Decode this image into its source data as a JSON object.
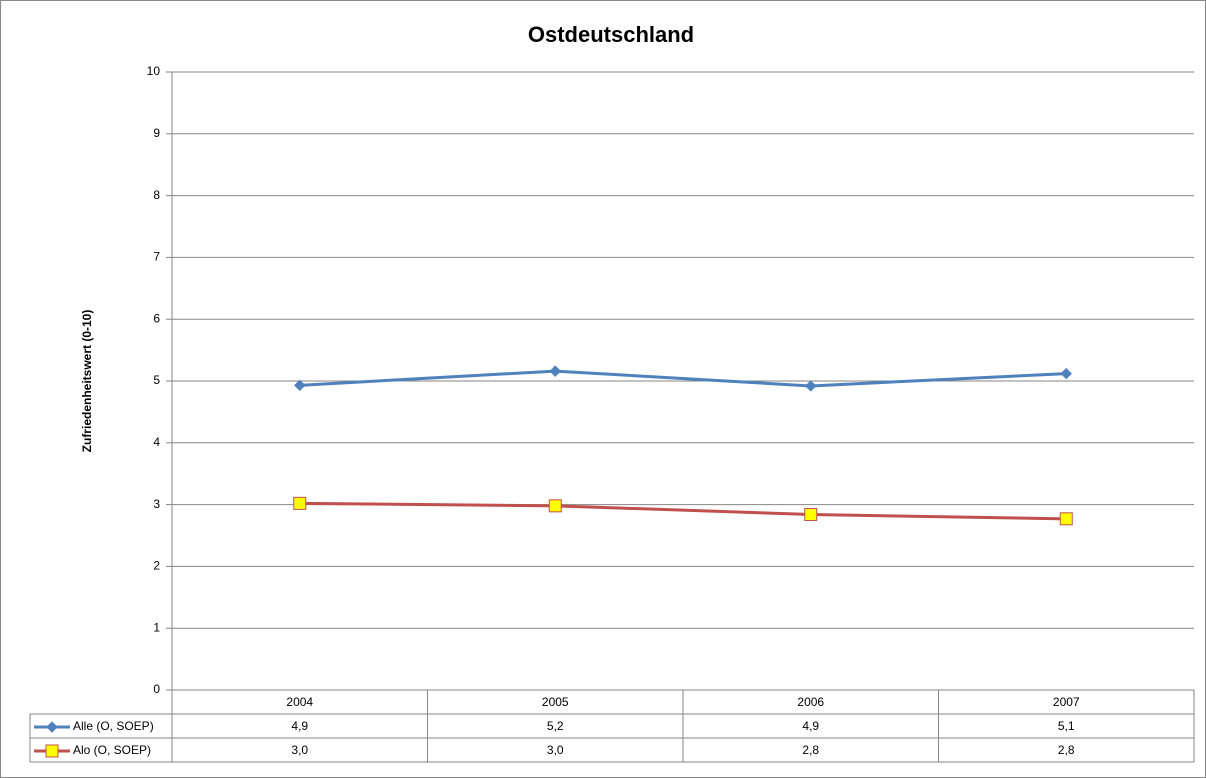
{
  "chart_data": {
    "type": "line",
    "title": "Ostdeutschland",
    "y_label": "Zufriedenheitswert (0-10)",
    "categories": [
      "2004",
      "2005",
      "2006",
      "2007"
    ],
    "series": [
      {
        "name": "Alle (O, SOEP)",
        "color": "#4f81bd",
        "marker": "diamond",
        "marker_fill": "#4f81bd",
        "values": [
          4.93,
          5.16,
          4.92,
          5.12
        ],
        "value_labels": [
          "4,9",
          "5,2",
          "4,9",
          "5,1"
        ]
      },
      {
        "name": "Alo (O, SOEP)",
        "color": "#c0504d",
        "marker": "square",
        "marker_fill": "#ffff00",
        "values": [
          3.02,
          2.98,
          2.84,
          2.77
        ],
        "value_labels": [
          "3,0",
          "3,0",
          "2,8",
          "2,8"
        ]
      }
    ],
    "ylim": [
      0,
      10
    ],
    "yticks": [
      0,
      1,
      2,
      3,
      4,
      5,
      6,
      7,
      8,
      9,
      10
    ],
    "grid": true
  }
}
